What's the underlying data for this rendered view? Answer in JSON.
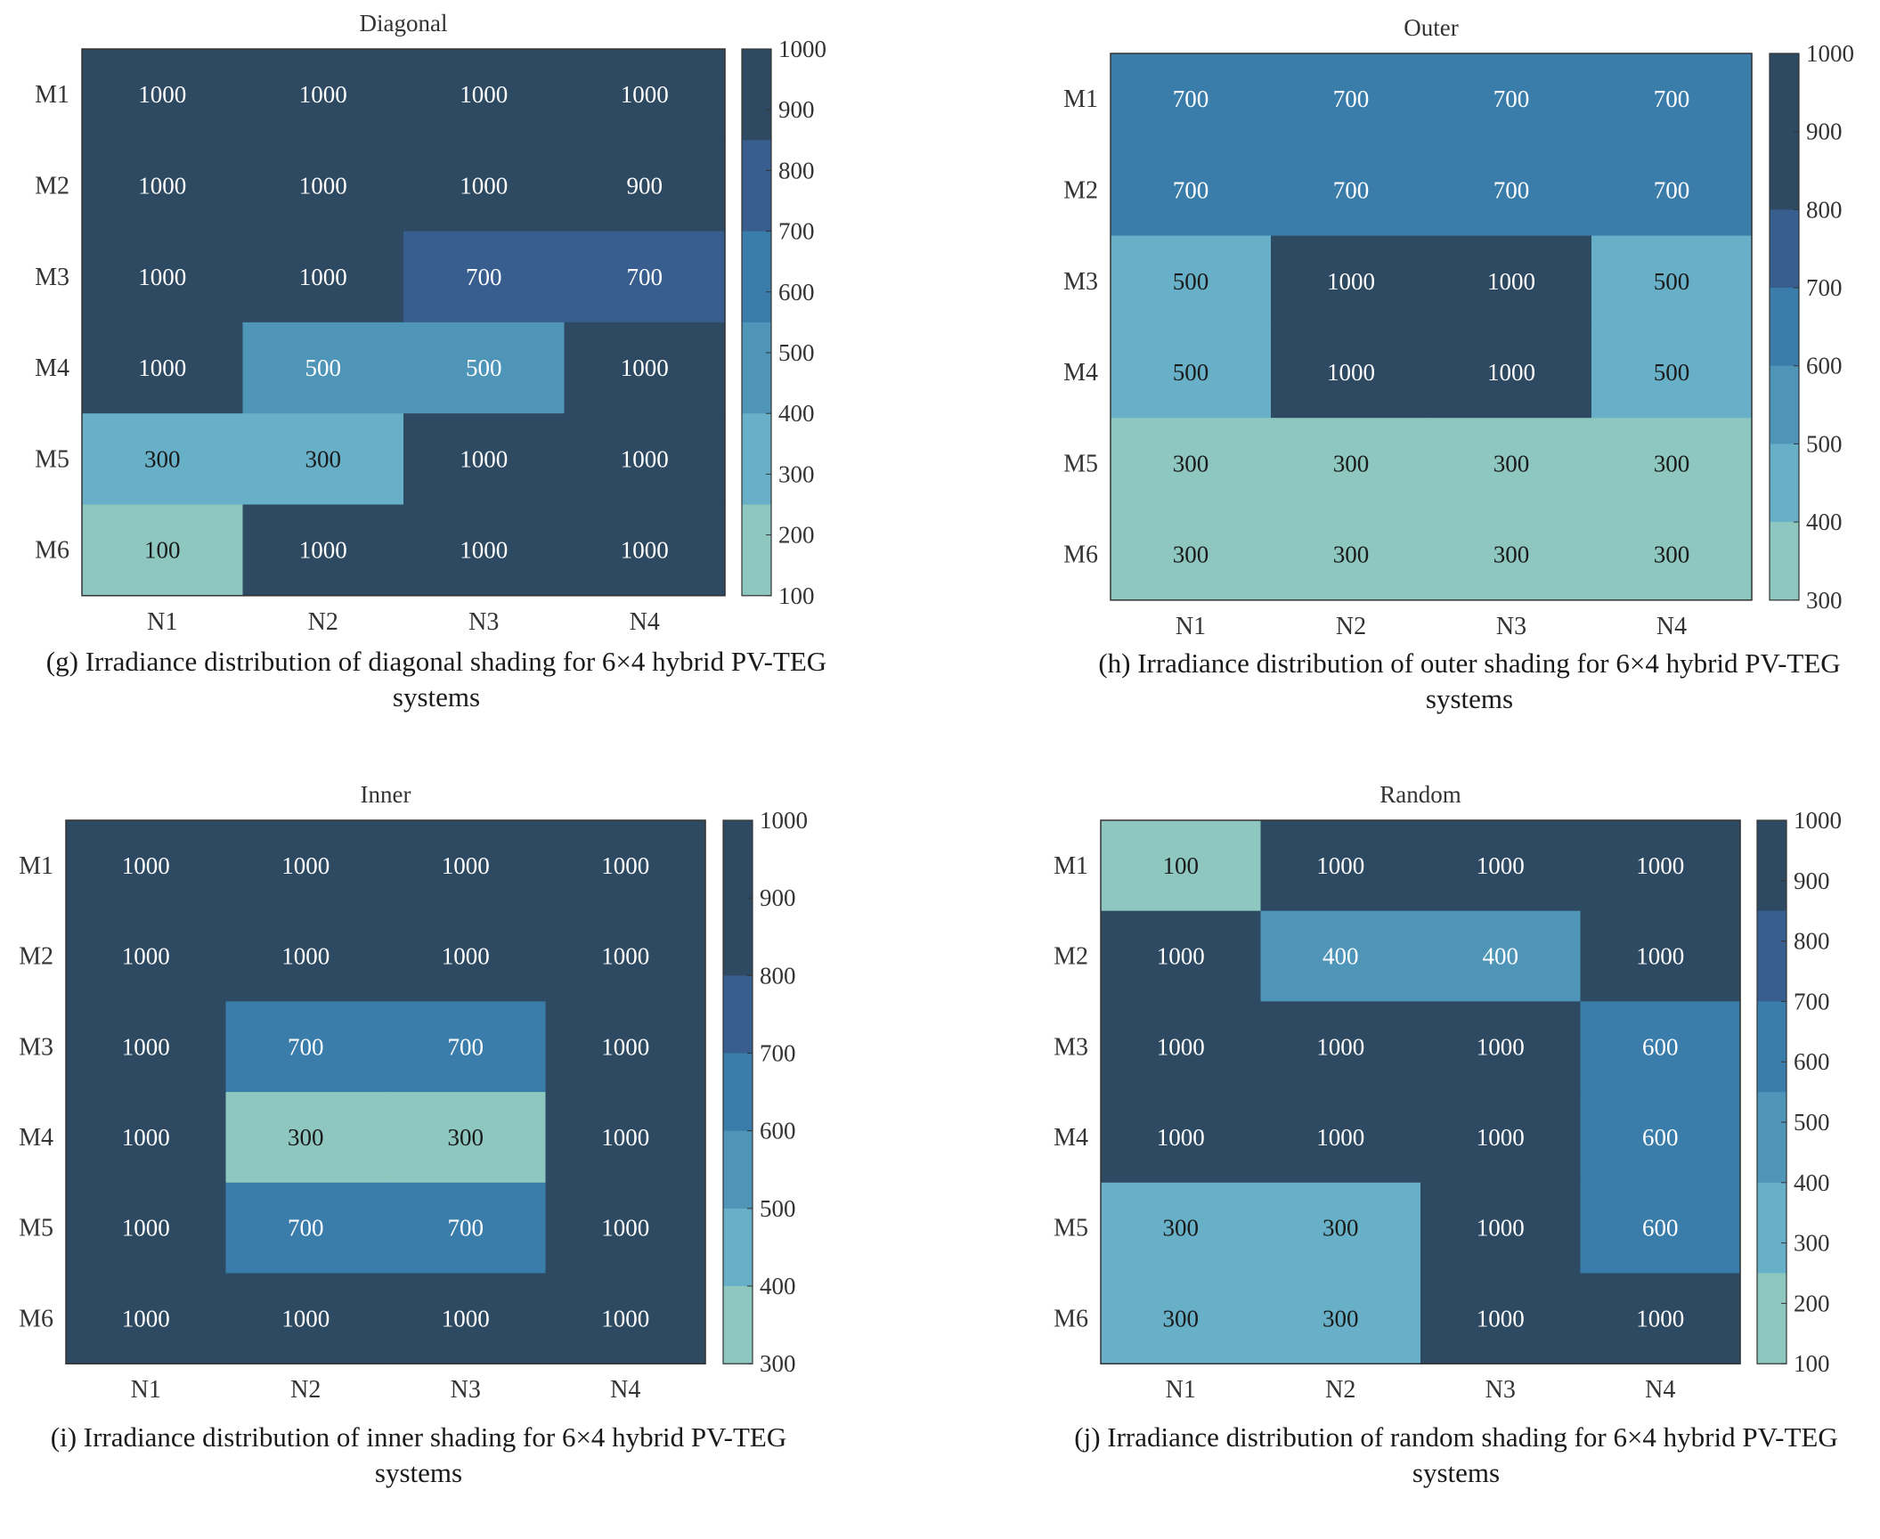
{
  "palette": {
    "colors": [
      "#8DC7BF",
      "#67B0C7",
      "#4E95B8",
      "#3A7DAA",
      "#375E8E",
      "#2E4A62"
    ],
    "frame": "#333333",
    "dark_text": "#1a1a1a",
    "light_text": "#ffffff"
  },
  "chart_data": [
    {
      "type": "heatmap",
      "title": "Diagonal",
      "caption": "(g)  Irradiance distribution of diagonal shading for 6×4 hybrid PV-TEG systems",
      "row_labels": [
        "M1",
        "M2",
        "M3",
        "M4",
        "M5",
        "M6"
      ],
      "col_labels": [
        "N1",
        "N2",
        "N3",
        "N4"
      ],
      "values": [
        [
          1000,
          1000,
          1000,
          1000
        ],
        [
          1000,
          1000,
          1000,
          900
        ],
        [
          1000,
          1000,
          700,
          700
        ],
        [
          1000,
          500,
          500,
          1000
        ],
        [
          300,
          300,
          1000,
          1000
        ],
        [
          100,
          1000,
          1000,
          1000
        ]
      ],
      "cell_colors": [
        [
          5,
          5,
          5,
          5
        ],
        [
          5,
          5,
          5,
          5
        ],
        [
          5,
          5,
          4,
          4
        ],
        [
          5,
          2,
          2,
          5
        ],
        [
          1,
          1,
          5,
          5
        ],
        [
          0,
          5,
          5,
          5
        ]
      ],
      "colorbar": {
        "range": [
          100,
          1000
        ],
        "ticks": [
          1000,
          900,
          800,
          700,
          600,
          500,
          400,
          300,
          200,
          100
        ]
      }
    },
    {
      "type": "heatmap",
      "title": "Outer",
      "caption": "(h)  Irradiance distribution of outer shading for 6×4 hybrid PV-TEG systems",
      "row_labels": [
        "M1",
        "M2",
        "M3",
        "M4",
        "M5",
        "M6"
      ],
      "col_labels": [
        "N1",
        "N2",
        "N3",
        "N4"
      ],
      "values": [
        [
          700,
          700,
          700,
          700
        ],
        [
          700,
          700,
          700,
          700
        ],
        [
          500,
          1000,
          1000,
          500
        ],
        [
          500,
          1000,
          1000,
          500
        ],
        [
          300,
          300,
          300,
          300
        ],
        [
          300,
          300,
          300,
          300
        ]
      ],
      "cell_colors": [
        [
          3,
          3,
          3,
          3
        ],
        [
          3,
          3,
          3,
          3
        ],
        [
          1,
          5,
          5,
          1
        ],
        [
          1,
          5,
          5,
          1
        ],
        [
          0,
          0,
          0,
          0
        ],
        [
          0,
          0,
          0,
          0
        ]
      ],
      "colorbar": {
        "range": [
          300,
          1000
        ],
        "ticks": [
          1000,
          900,
          800,
          700,
          600,
          500,
          400,
          300
        ]
      }
    },
    {
      "type": "heatmap",
      "title": "Inner",
      "caption": "(i)  Irradiance distribution of inner shading for 6×4 hybrid PV-TEG systems",
      "row_labels": [
        "M1",
        "M2",
        "M3",
        "M4",
        "M5",
        "M6"
      ],
      "col_labels": [
        "N1",
        "N2",
        "N3",
        "N4"
      ],
      "values": [
        [
          1000,
          1000,
          1000,
          1000
        ],
        [
          1000,
          1000,
          1000,
          1000
        ],
        [
          1000,
          700,
          700,
          1000
        ],
        [
          1000,
          300,
          300,
          1000
        ],
        [
          1000,
          700,
          700,
          1000
        ],
        [
          1000,
          1000,
          1000,
          1000
        ]
      ],
      "cell_colors": [
        [
          5,
          5,
          5,
          5
        ],
        [
          5,
          5,
          5,
          5
        ],
        [
          5,
          3,
          3,
          5
        ],
        [
          5,
          0,
          0,
          5
        ],
        [
          5,
          3,
          3,
          5
        ],
        [
          5,
          5,
          5,
          5
        ]
      ],
      "colorbar": {
        "range": [
          300,
          1000
        ],
        "ticks": [
          1000,
          900,
          800,
          700,
          600,
          500,
          400,
          300
        ]
      }
    },
    {
      "type": "heatmap",
      "title": "Random",
      "caption": "(j)  Irradiance distribution of random shading for 6×4 hybrid PV-TEG systems",
      "row_labels": [
        "M1",
        "M2",
        "M3",
        "M4",
        "M5",
        "M6"
      ],
      "col_labels": [
        "N1",
        "N2",
        "N3",
        "N4"
      ],
      "values": [
        [
          100,
          1000,
          1000,
          1000
        ],
        [
          1000,
          400,
          400,
          1000
        ],
        [
          1000,
          1000,
          1000,
          600
        ],
        [
          1000,
          1000,
          1000,
          600
        ],
        [
          300,
          300,
          1000,
          600
        ],
        [
          300,
          300,
          1000,
          1000
        ]
      ],
      "cell_colors": [
        [
          0,
          5,
          5,
          5
        ],
        [
          5,
          2,
          2,
          5
        ],
        [
          5,
          5,
          5,
          3
        ],
        [
          5,
          5,
          5,
          3
        ],
        [
          1,
          1,
          5,
          3
        ],
        [
          1,
          1,
          5,
          5
        ]
      ],
      "colorbar": {
        "range": [
          100,
          1000
        ],
        "ticks": [
          1000,
          900,
          800,
          700,
          600,
          500,
          400,
          300,
          200,
          100
        ]
      }
    }
  ]
}
